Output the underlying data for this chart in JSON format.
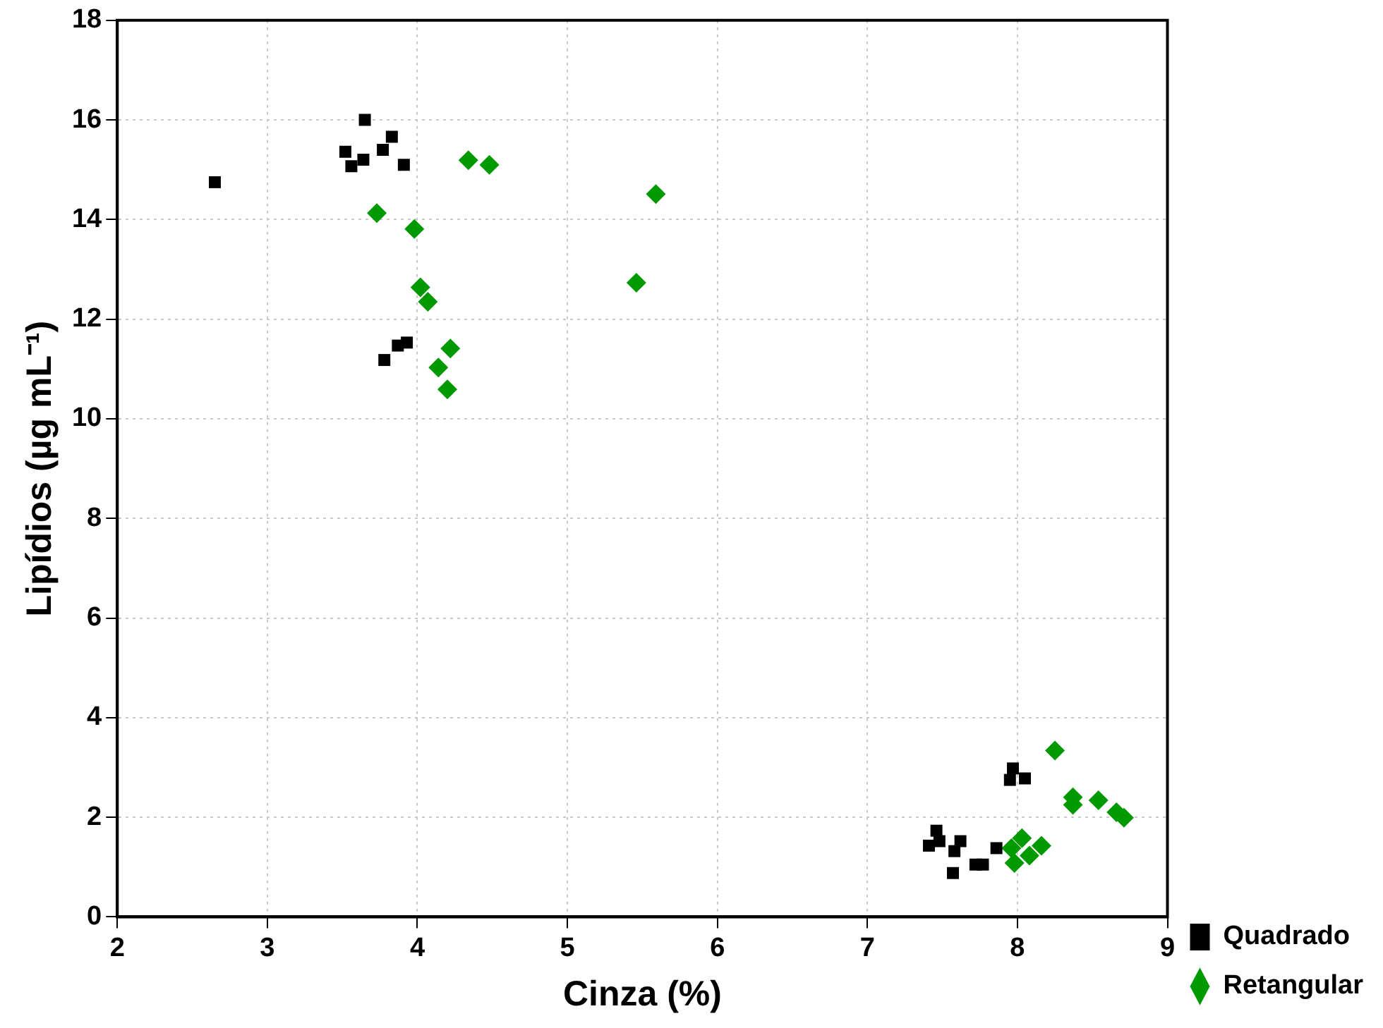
{
  "chart_data": {
    "type": "scatter",
    "xlabel": "Cinza (%)",
    "ylabel": "Lipídios (µg mL⁻¹)",
    "xlim": [
      2,
      9
    ],
    "xticks": [
      2,
      3,
      4,
      5,
      6,
      7,
      8,
      9
    ],
    "ylim": [
      0,
      18
    ],
    "yticks": [
      0,
      2,
      4,
      6,
      8,
      10,
      12,
      14,
      16,
      18
    ],
    "grid": true,
    "legend": "bottom right",
    "series": [
      {
        "name": "Quadrado",
        "color": "#000000",
        "marker": "square",
        "x": [
          2.65,
          3.65,
          3.52,
          3.56,
          3.64,
          3.77,
          3.83,
          3.91,
          3.78,
          3.87,
          3.93,
          7.41,
          7.46,
          7.48,
          7.58,
          7.62,
          7.57,
          7.72,
          7.77,
          7.86,
          7.95,
          7.97,
          8.05
        ],
        "values": [
          14.75,
          16.0,
          15.36,
          15.07,
          15.2,
          15.4,
          15.66,
          15.1,
          11.18,
          11.47,
          11.53,
          1.43,
          1.73,
          1.52,
          1.32,
          1.52,
          0.88,
          1.05,
          1.05,
          1.38,
          2.75,
          2.98,
          2.78
        ]
      },
      {
        "name": "Retangular",
        "color": "#009900",
        "marker": "diamond",
        "x": [
          4.34,
          4.48,
          3.73,
          3.98,
          4.02,
          4.07,
          4.22,
          4.14,
          4.2,
          5.46,
          5.59,
          8.25,
          8.37,
          8.37,
          8.54,
          8.66,
          8.71,
          8.03,
          7.96,
          7.98,
          8.08,
          8.16
        ],
        "values": [
          15.19,
          15.1,
          14.13,
          13.81,
          12.64,
          12.35,
          11.41,
          11.03,
          10.59,
          12.73,
          14.51,
          3.34,
          2.4,
          2.25,
          2.34,
          2.1,
          1.99,
          1.58,
          1.38,
          1.08,
          1.23,
          1.43
        ]
      }
    ]
  }
}
